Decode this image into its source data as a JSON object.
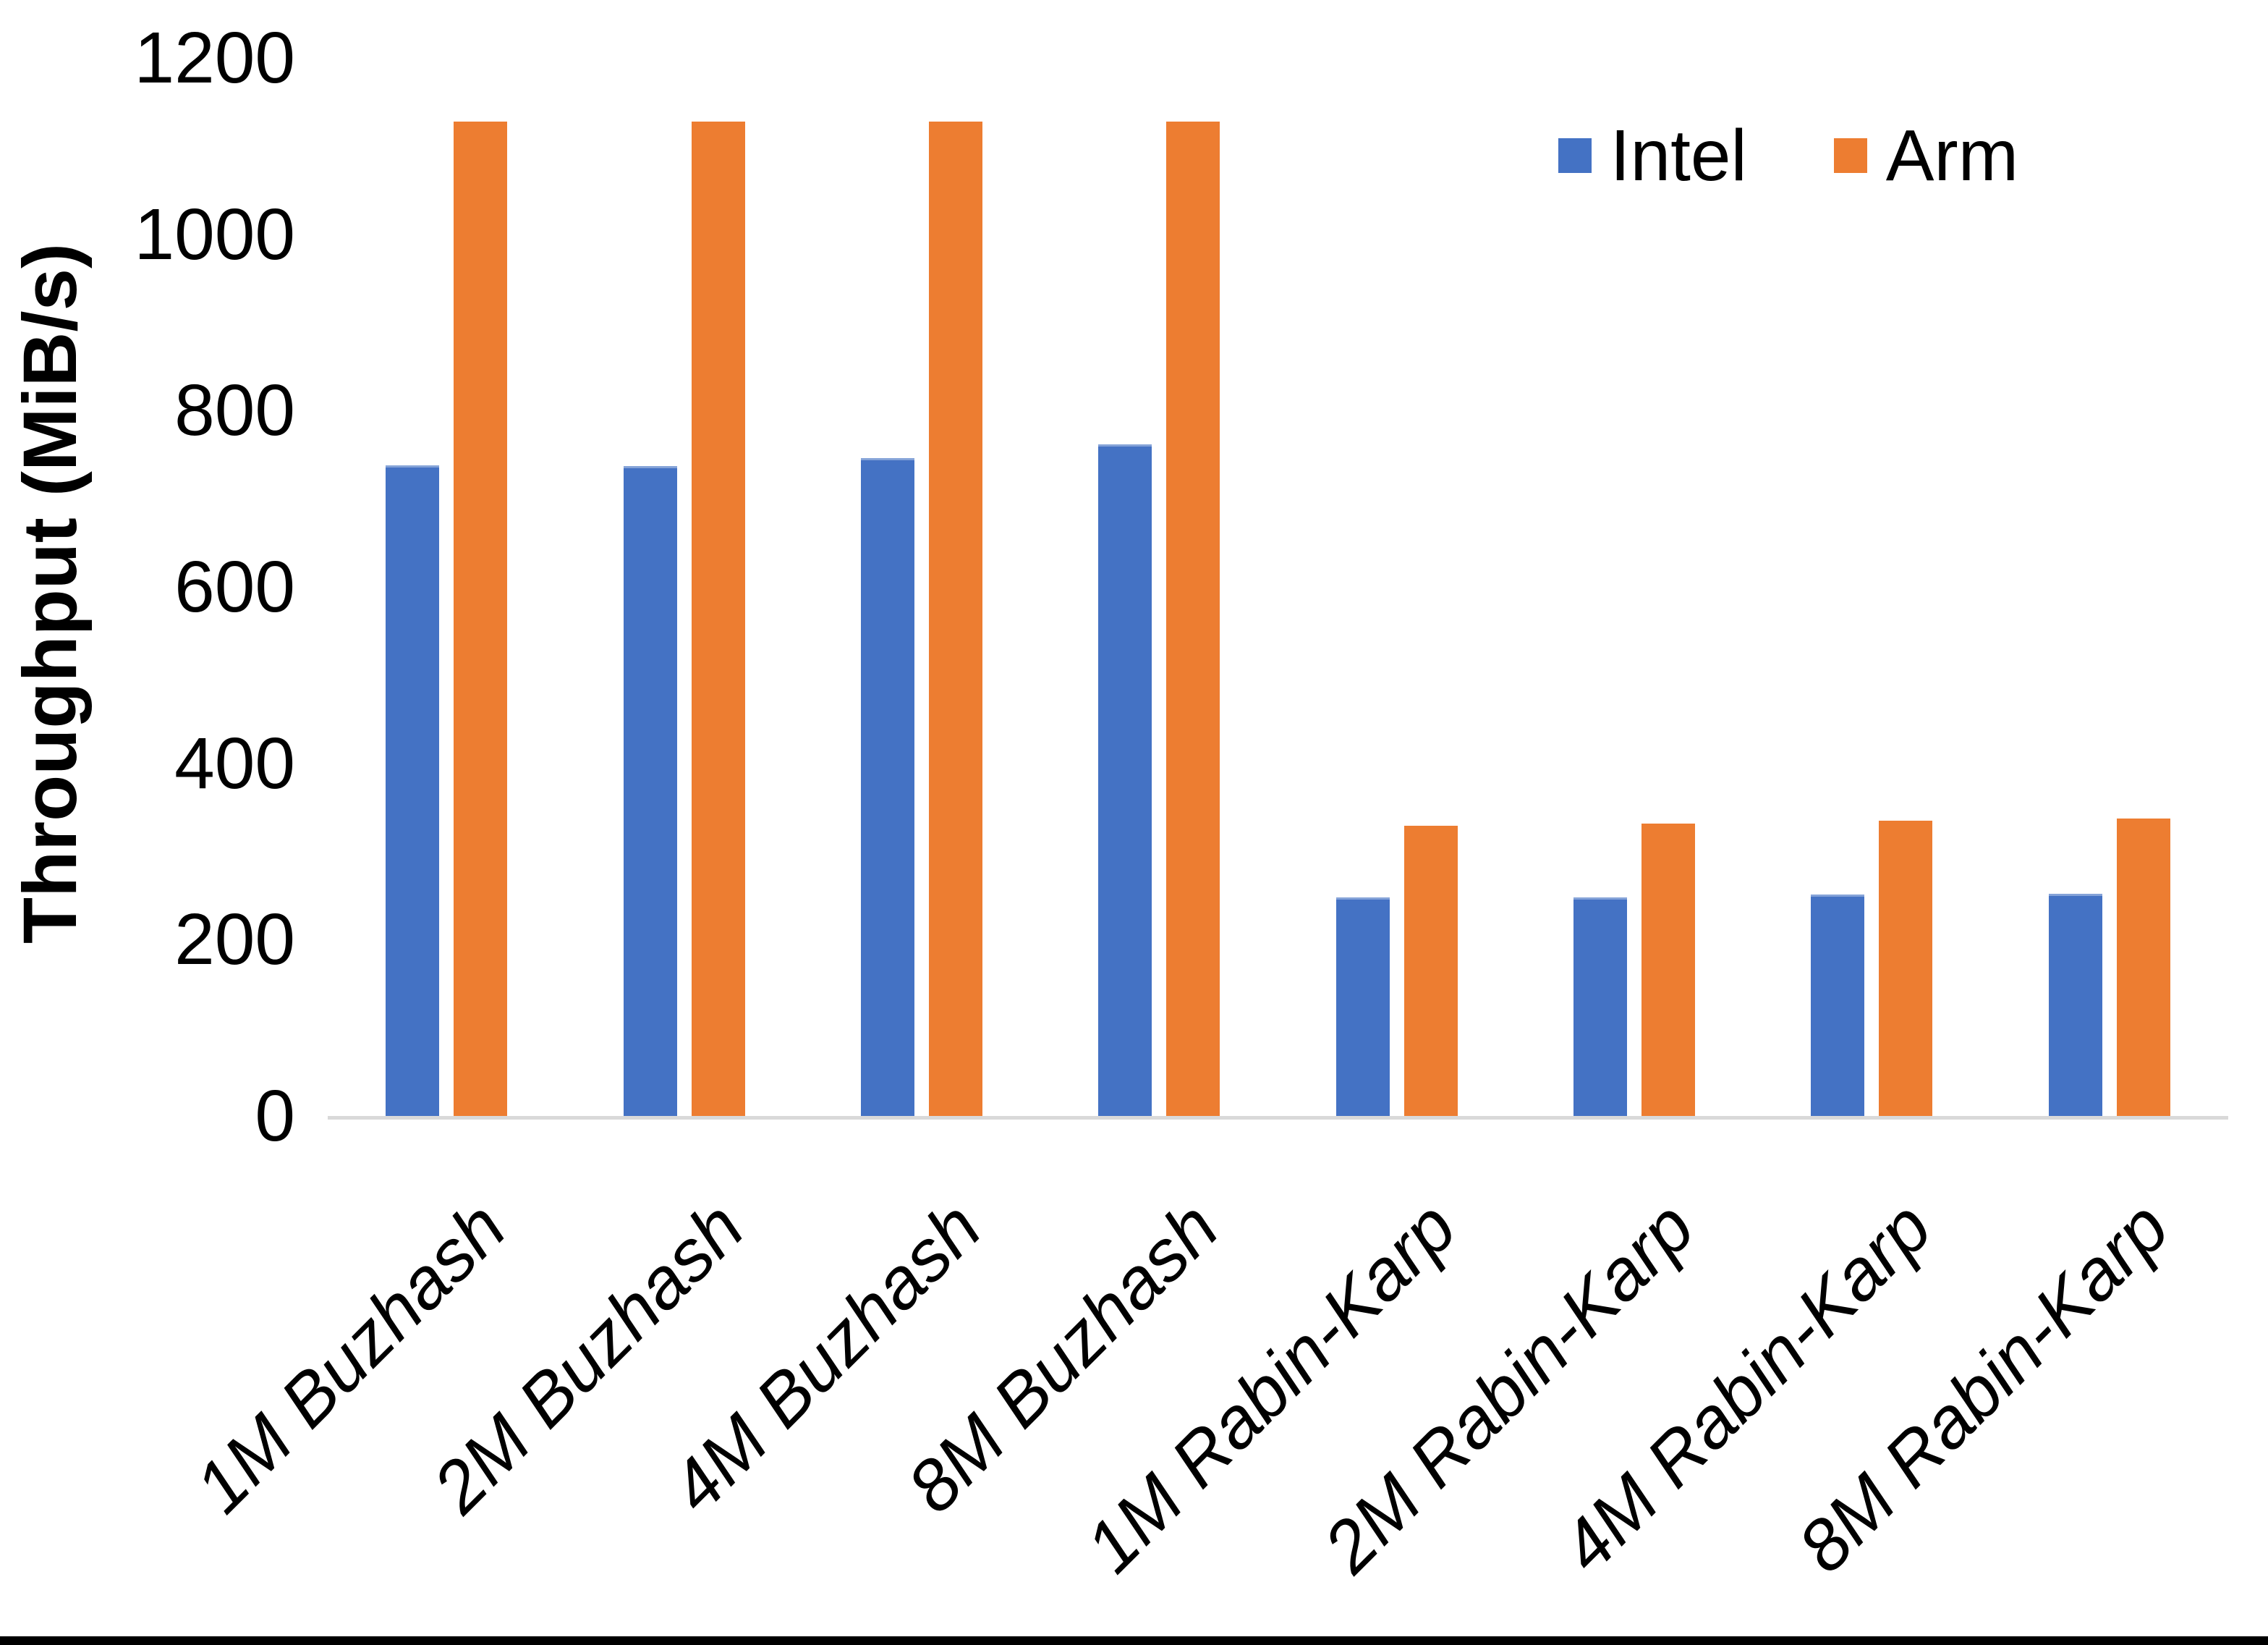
{
  "chart_data": {
    "type": "bar",
    "title": "",
    "ylabel": "Throughput (MiB/s)",
    "xlabel": "",
    "ylim": [
      0,
      1200
    ],
    "ytick_step": 200,
    "yticks": [
      0,
      200,
      400,
      600,
      800,
      1000,
      1200
    ],
    "grid": false,
    "legend_position": "top-right",
    "categories": [
      "1M Buzhash",
      "2M Buzhash",
      "4M Buzhash",
      "8M Buzhash",
      "1M Rabin-Karp",
      "2M Rabin-Karp",
      "4M Rabin-Karp",
      "8M Rabin-Karp"
    ],
    "series": [
      {
        "name": "Intel",
        "color": "#4472C4",
        "values": [
          738,
          737,
          746,
          762,
          248,
          248,
          251,
          252
        ]
      },
      {
        "name": "Arm",
        "color": "#ED7D31",
        "values": [
          1128,
          1128,
          1128,
          1128,
          329,
          332,
          335,
          337
        ]
      }
    ],
    "axis_line_color": "#D9D9D9"
  }
}
